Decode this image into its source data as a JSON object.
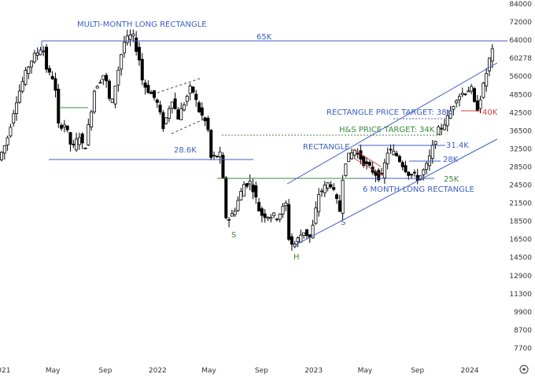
{
  "chart_data": {
    "type": "candlestick",
    "ylim": [
      7700,
      84000
    ],
    "y_scale": "log",
    "y_ticks": [
      "84000",
      "72000",
      "64000",
      "60278",
      "56000",
      "48500",
      "42500",
      "36500",
      "32500",
      "28500",
      "24500",
      "21500",
      "18500",
      "16500",
      "14500",
      "12900",
      "11300",
      "9900",
      "8700",
      "7700"
    ],
    "x_ticks": [
      "2021",
      "May",
      "Sep",
      "2022",
      "May",
      "Sep",
      "2023",
      "May",
      "Sep",
      "2024"
    ],
    "price_path": [
      [
        "2021-01-01",
        28500
      ],
      [
        "2021-01-20",
        32500
      ],
      [
        "2021-02-10",
        42500
      ],
      [
        "2021-02-25",
        48500
      ],
      [
        "2021-03-15",
        56000
      ],
      [
        "2021-04-14",
        63000
      ],
      [
        "2021-04-25",
        52000
      ],
      [
        "2021-05-12",
        50000
      ],
      [
        "2021-05-19",
        36000
      ],
      [
        "2021-06-05",
        36500
      ],
      [
        "2021-06-22",
        30500
      ],
      [
        "2021-07-10",
        34000
      ],
      [
        "2021-07-20",
        29800
      ],
      [
        "2021-08-14",
        47000
      ],
      [
        "2021-09-06",
        52000
      ],
      [
        "2021-09-21",
        40500
      ],
      [
        "2021-10-01",
        48000
      ],
      [
        "2021-10-20",
        64000
      ],
      [
        "2021-11-10",
        68000
      ],
      [
        "2021-11-28",
        56000
      ],
      [
        "2021-12-04",
        48500
      ],
      [
        "2022-01-05",
        43000
      ],
      [
        "2022-01-22",
        35500
      ],
      [
        "2022-02-10",
        44000
      ],
      [
        "2022-02-24",
        38000
      ],
      [
        "2022-03-28",
        47500
      ],
      [
        "2022-04-15",
        40000
      ],
      [
        "2022-05-05",
        36000
      ],
      [
        "2022-05-12",
        28800
      ],
      [
        "2022-06-05",
        29500
      ],
      [
        "2022-06-18",
        18500
      ],
      [
        "2022-07-05",
        19800
      ],
      [
        "2022-07-29",
        24000
      ],
      [
        "2022-08-15",
        24400
      ],
      [
        "2022-09-05",
        19500
      ],
      [
        "2022-10-15",
        19200
      ],
      [
        "2022-11-05",
        21000
      ],
      [
        "2022-11-09",
        16800
      ],
      [
        "2022-11-21",
        15600
      ],
      [
        "2022-12-15",
        17400
      ],
      [
        "2023-01-01",
        16500
      ],
      [
        "2023-01-20",
        22500
      ],
      [
        "2023-02-15",
        24500
      ],
      [
        "2023-03-10",
        20000
      ],
      [
        "2023-03-20",
        28000
      ],
      [
        "2023-04-14",
        30500
      ],
      [
        "2023-05-10",
        27500
      ],
      [
        "2023-06-15",
        25000
      ],
      [
        "2023-07-01",
        30500
      ],
      [
        "2023-07-20",
        29500
      ],
      [
        "2023-08-17",
        26000
      ],
      [
        "2023-09-11",
        25000
      ],
      [
        "2023-10-01",
        27500
      ],
      [
        "2023-10-24",
        34500
      ],
      [
        "2023-11-15",
        37500
      ],
      [
        "2023-12-08",
        44000
      ],
      [
        "2024-01-11",
        47000
      ],
      [
        "2024-01-23",
        39500
      ],
      [
        "2024-02-10",
        48000
      ],
      [
        "2024-02-27",
        60278
      ]
    ]
  },
  "annotations": {
    "multi_month_title": "MULTI-MONTH LONG RECTANGLE",
    "level_65k": "65K",
    "level_286k": "28.6K",
    "rect_target": "RECTANGLE PRICE TARGET: 38K",
    "level_40k": "40K",
    "hs_target": "H&S PRICE TARGET: 34K",
    "rectangle": "RECTANGLE",
    "level_314k": "31.4K",
    "level_28k": "28K",
    "level_25k": "25K",
    "six_month": "6 MONTH-LONG RECTANGLE",
    "left_s": "S",
    "head_h": "H",
    "right_s": "S"
  },
  "colors": {
    "up": "#ffffff",
    "down": "#000000",
    "wick": "#000000",
    "blue": "#3d5fc4",
    "green": "#3b8a3b",
    "red": "#d93b3b",
    "axis_text": "#333333"
  },
  "controls": {
    "settings_icon": "gear-icon"
  }
}
